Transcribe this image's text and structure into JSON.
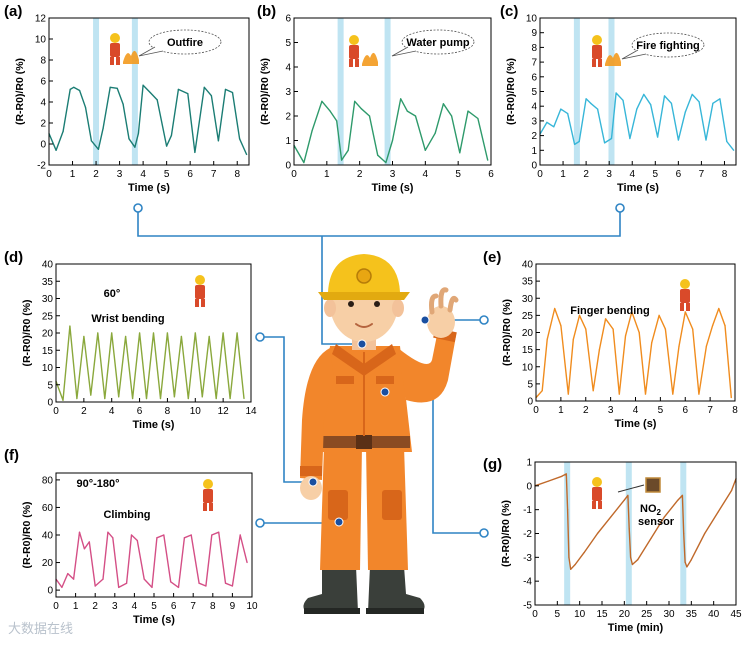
{
  "figure": {
    "watermark": "大数据在线"
  },
  "colors": {
    "connector": "#2f84c4",
    "highlight": "#bfe4f2",
    "axis": "#000000",
    "suit": "#f2862b",
    "suit_dark": "#d8661a"
  },
  "chart_data": [
    {
      "id": "a",
      "label": "(a)",
      "type": "line",
      "color": "#1b7d74",
      "xlabel": "Time (s)",
      "ylabel": "(R-R0)/R0 (%)",
      "xlim": [
        0,
        8.5
      ],
      "ylim": [
        -2,
        12
      ],
      "xticks": [
        0,
        1,
        2,
        3,
        4,
        5,
        6,
        7,
        8
      ],
      "yticks": [
        -2,
        0,
        2,
        4,
        6,
        8,
        10,
        12
      ],
      "highlight_x": [
        2.0,
        3.65
      ],
      "annotation": "Outfire",
      "x": [
        0,
        0.3,
        0.6,
        0.9,
        1.05,
        1.3,
        1.55,
        1.8,
        2.1,
        2.3,
        2.6,
        2.9,
        3.15,
        3.4,
        3.65,
        3.8,
        4.0,
        4.3,
        4.6,
        5.0,
        5.2,
        5.5,
        5.9,
        6.2,
        6.6,
        6.9,
        7.2,
        7.5,
        7.8,
        8.1,
        8.4
      ],
      "values": [
        1.0,
        -0.6,
        1.2,
        5.2,
        5.4,
        5.1,
        3.5,
        0.3,
        -0.5,
        1.5,
        5.4,
        5.3,
        3.8,
        0.5,
        -0.3,
        1.0,
        5.6,
        4.9,
        4.2,
        -0.2,
        0.8,
        5.2,
        4.8,
        -0.8,
        5.4,
        4.6,
        0.3,
        5.2,
        4.9,
        0.5,
        -1.0
      ]
    },
    {
      "id": "b",
      "label": "(b)",
      "type": "line",
      "color": "#2e9a6b",
      "xlabel": "Time (s)",
      "ylabel": "(R-R0)/R0 (%)",
      "xlim": [
        0,
        6
      ],
      "ylim": [
        0,
        6
      ],
      "xticks": [
        0,
        1,
        2,
        3,
        4,
        5,
        6
      ],
      "yticks": [
        0,
        1,
        2,
        3,
        4,
        5,
        6
      ],
      "highlight_x": [
        1.42,
        2.85
      ],
      "annotation": "Water pump",
      "x": [
        0,
        0.3,
        0.55,
        0.85,
        1.1,
        1.3,
        1.45,
        1.65,
        1.85,
        2.05,
        2.3,
        2.55,
        2.8,
        3.0,
        3.25,
        3.45,
        3.7,
        4.0,
        4.3,
        4.55,
        4.8,
        5.05,
        5.3,
        5.6,
        5.9
      ],
      "values": [
        0.8,
        0.1,
        1.4,
        2.6,
        2.2,
        1.8,
        0.2,
        0.6,
        2.6,
        2.3,
        2.0,
        0.4,
        0.1,
        1.0,
        2.7,
        2.2,
        2.0,
        0.6,
        1.3,
        2.5,
        2.0,
        0.5,
        2.2,
        1.9,
        0.2
      ]
    },
    {
      "id": "c",
      "label": "(c)",
      "type": "line",
      "color": "#37b6d8",
      "xlabel": "Time (s)",
      "ylabel": "(R-R0)/R0 (%)",
      "xlim": [
        0,
        8.5
      ],
      "ylim": [
        0,
        10
      ],
      "xticks": [
        0,
        1,
        2,
        3,
        4,
        5,
        6,
        7,
        8
      ],
      "yticks": [
        0,
        1,
        2,
        3,
        4,
        5,
        6,
        7,
        8,
        9,
        10
      ],
      "highlight_x": [
        1.6,
        3.1
      ],
      "annotation": "Fire fighting",
      "x": [
        0,
        0.3,
        0.6,
        0.9,
        1.2,
        1.5,
        1.7,
        2.0,
        2.2,
        2.5,
        2.8,
        3.1,
        3.3,
        3.6,
        3.9,
        4.2,
        4.5,
        4.8,
        5.1,
        5.4,
        5.7,
        6.0,
        6.3,
        6.6,
        6.9,
        7.2,
        7.5,
        7.8,
        8.1,
        8.4
      ],
      "values": [
        2.1,
        2.9,
        2.6,
        3.8,
        3.5,
        1.4,
        1.6,
        4.5,
        4.2,
        3.8,
        1.5,
        1.8,
        4.9,
        4.4,
        1.8,
        3.8,
        4.8,
        4.1,
        1.9,
        4.7,
        4.2,
        1.7,
        3.6,
        4.8,
        4.3,
        1.7,
        4.2,
        4.5,
        1.6,
        1.0
      ]
    },
    {
      "id": "d",
      "label": "(d)",
      "type": "line",
      "color": "#8aa83c",
      "xlabel": "Time (s)",
      "ylabel": "(R-R0)/R0 (%)",
      "xlim": [
        0,
        14
      ],
      "ylim": [
        0,
        40
      ],
      "xticks": [
        0,
        2,
        4,
        6,
        8,
        10,
        12,
        14
      ],
      "yticks": [
        0,
        5,
        10,
        15,
        20,
        25,
        30,
        35,
        40
      ],
      "annotation": "Wrist bending",
      "angle_label": "60°",
      "x": [
        0,
        0.5,
        1.0,
        1.5,
        2.0,
        2.5,
        3.0,
        3.5,
        4.0,
        4.5,
        5.0,
        5.5,
        6.0,
        6.5,
        7.0,
        7.5,
        8.0,
        8.5,
        9.0,
        9.5,
        10.0,
        10.5,
        11.0,
        11.5,
        12.0,
        12.5,
        13.0,
        13.5
      ],
      "values": [
        6,
        0.5,
        22,
        1,
        19,
        2,
        20,
        1,
        20,
        1.5,
        19,
        1,
        20,
        1,
        20,
        1,
        20,
        1.5,
        19,
        1,
        20,
        1.5,
        19,
        1,
        20,
        1,
        20,
        1
      ]
    },
    {
      "id": "e",
      "label": "(e)",
      "type": "line",
      "color": "#f08c1e",
      "xlabel": "Time (s)",
      "ylabel": "(R-R0)/R0 (%)",
      "xlim": [
        0,
        8
      ],
      "ylim": [
        0,
        40
      ],
      "xticks": [
        0,
        1,
        2,
        3,
        4,
        5,
        6,
        7,
        8
      ],
      "yticks": [
        0,
        5,
        10,
        15,
        20,
        25,
        30,
        35,
        40
      ],
      "annotation": "Finger bending",
      "x": [
        0,
        0.25,
        0.45,
        0.75,
        1.0,
        1.3,
        1.5,
        1.75,
        2.0,
        2.3,
        2.55,
        2.8,
        3.1,
        3.35,
        3.6,
        3.85,
        4.15,
        4.4,
        4.65,
        4.95,
        5.2,
        5.5,
        5.75,
        6.0,
        6.3,
        6.55,
        6.85,
        7.1,
        7.35,
        7.6,
        7.85
      ],
      "values": [
        1,
        3,
        18,
        27,
        22,
        2,
        18,
        25,
        21,
        3,
        15,
        24,
        21,
        2,
        19,
        26,
        20,
        2,
        17,
        25,
        21,
        2,
        16,
        26,
        21,
        2,
        16,
        22,
        27,
        22,
        1
      ]
    },
    {
      "id": "f",
      "label": "(f)",
      "type": "line",
      "color": "#d44f86",
      "xlabel": "Time (s)",
      "ylabel": "(R-R0)/R0 (%)",
      "xlim": [
        0,
        10
      ],
      "ylim": [
        -5,
        85
      ],
      "xticks": [
        0,
        1,
        2,
        3,
        4,
        5,
        6,
        7,
        8,
        9,
        10
      ],
      "yticks": [
        0,
        20,
        40,
        60,
        80
      ],
      "annotation": "Climbing",
      "angle_label": "90°-180°",
      "x": [
        0,
        0.3,
        0.6,
        0.9,
        1.2,
        1.45,
        1.7,
        2.0,
        2.4,
        2.65,
        2.9,
        3.2,
        3.6,
        3.85,
        4.15,
        4.5,
        4.9,
        5.15,
        5.5,
        5.85,
        6.25,
        6.55,
        6.9,
        7.3,
        7.65,
        7.95,
        8.3,
        8.65,
        9.0,
        9.4,
        9.75
      ],
      "values": [
        8,
        2,
        12,
        8,
        42,
        30,
        35,
        3,
        8,
        42,
        38,
        2,
        5,
        40,
        36,
        8,
        2,
        38,
        40,
        6,
        2,
        38,
        40,
        5,
        3,
        40,
        42,
        5,
        3,
        40,
        20
      ]
    },
    {
      "id": "g",
      "label": "(g)",
      "type": "line",
      "color": "#c0692a",
      "xlabel": "Time (min)",
      "ylabel": "(R-R0)/R0 (%)",
      "xlim": [
        0,
        45
      ],
      "ylim": [
        -5,
        1
      ],
      "xticks": [
        0,
        5,
        10,
        15,
        20,
        25,
        30,
        35,
        40,
        45
      ],
      "yticks": [
        -5,
        -4,
        -3,
        -2,
        -1,
        0,
        1
      ],
      "highlight_x": [
        7.2,
        21.0,
        33.2
      ],
      "annotation": "NO2 sensor",
      "annotation_line1": "NO",
      "annotation_sub": "2",
      "annotation_line2": "sensor",
      "x": [
        0,
        3,
        6,
        7.0,
        7.3,
        7.6,
        8.0,
        9,
        11,
        14,
        17,
        20,
        20.8,
        21.1,
        21.4,
        21.8,
        23,
        26,
        29,
        32,
        33.0,
        33.3,
        33.6,
        34,
        35,
        38,
        41,
        44,
        45
      ],
      "values": [
        0.0,
        0.2,
        0.4,
        0.5,
        -1.0,
        -3.0,
        -3.5,
        -3.3,
        -2.8,
        -2.0,
        -1.3,
        -0.6,
        -0.4,
        -1.8,
        -3.0,
        -3.3,
        -3.1,
        -2.2,
        -1.3,
        -0.6,
        -0.4,
        -2.0,
        -3.2,
        -3.4,
        -3.1,
        -2.0,
        -1.1,
        -0.2,
        0.3
      ]
    }
  ]
}
